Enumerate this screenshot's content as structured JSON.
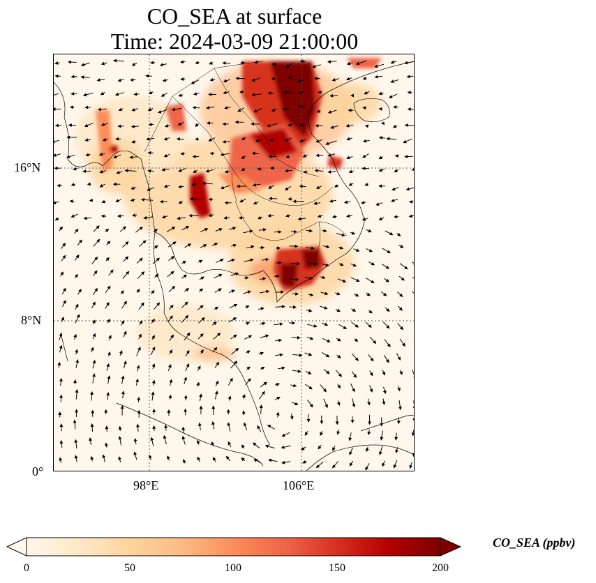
{
  "title": {
    "line1": "CO_SEA at surface",
    "line2": "Time: 2024-03-09 21:00:00"
  },
  "map": {
    "lat_labels": [
      "16°N",
      "8°N",
      "0°"
    ],
    "lon_labels": [
      "98°E",
      "106°E"
    ],
    "background_color": "#fff7ec"
  },
  "colorbar": {
    "label": "CO_SEA (ppbv)",
    "ticks": [
      "0",
      "50",
      "100",
      "150",
      "200"
    ],
    "min": 0,
    "max": 200,
    "colormap": [
      "#fff7ec",
      "#fee8c8",
      "#fdd49e",
      "#fdbb84",
      "#fc8d59",
      "#ef6548",
      "#d7301f",
      "#b30000",
      "#7f0000"
    ]
  }
}
